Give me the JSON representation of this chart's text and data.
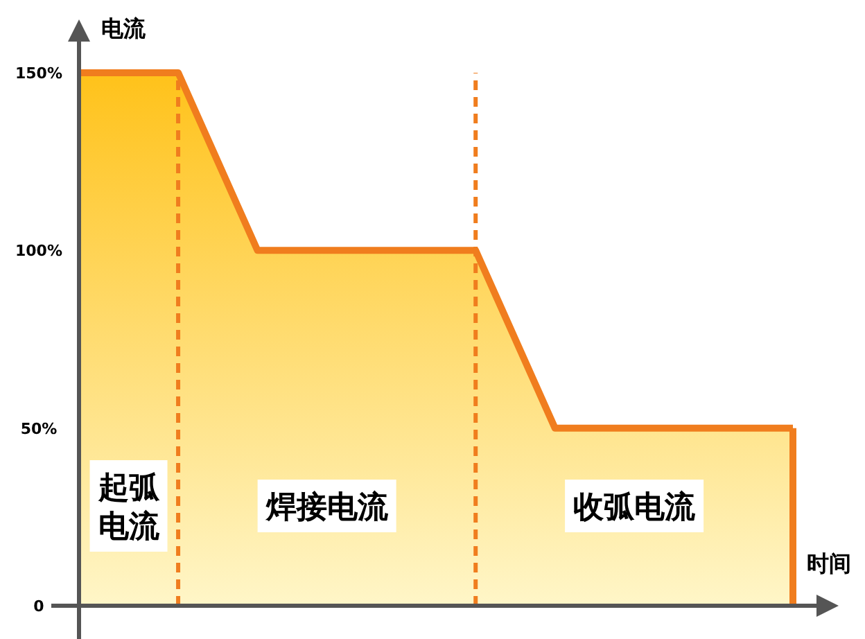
{
  "chart_data": {
    "type": "area",
    "ylabel": "电流",
    "xlabel": "时间",
    "categories": [
      null,
      null,
      null,
      null,
      null,
      null,
      null,
      null,
      null,
      null,
      null,
      null,
      null,
      null,
      null,
      null,
      null,
      null,
      null,
      null,
      null,
      null,
      null,
      null,
      null,
      null,
      null,
      null,
      null,
      null,
      null,
      null,
      null,
      null,
      null,
      null,
      null
    ],
    "series": [
      {
        "color": "#f07d1e",
        "values": [
          150,
          150,
          150,
          150,
          150,
          150,
          137.5,
          125,
          112.5,
          100,
          100,
          100,
          100,
          100,
          100,
          100,
          100,
          100,
          100,
          100,
          100,
          87.5,
          75,
          62.5,
          50,
          50,
          50,
          50,
          50,
          50,
          50,
          50,
          50,
          50,
          50,
          50,
          50
        ]
      }
    ],
    "ylim": [
      0,
      165
    ],
    "yticks": [
      0,
      {
        "value": 50,
        "label": "50%"
      },
      {
        "value": 100,
        "label": "100%"
      },
      {
        "value": 150,
        "label": "150%"
      }
    ],
    "tick_labels": "y",
    "grid": false,
    "annotations": [
      "起弧电流",
      "焊接电流",
      "收弧电流"
    ]
  }
}
